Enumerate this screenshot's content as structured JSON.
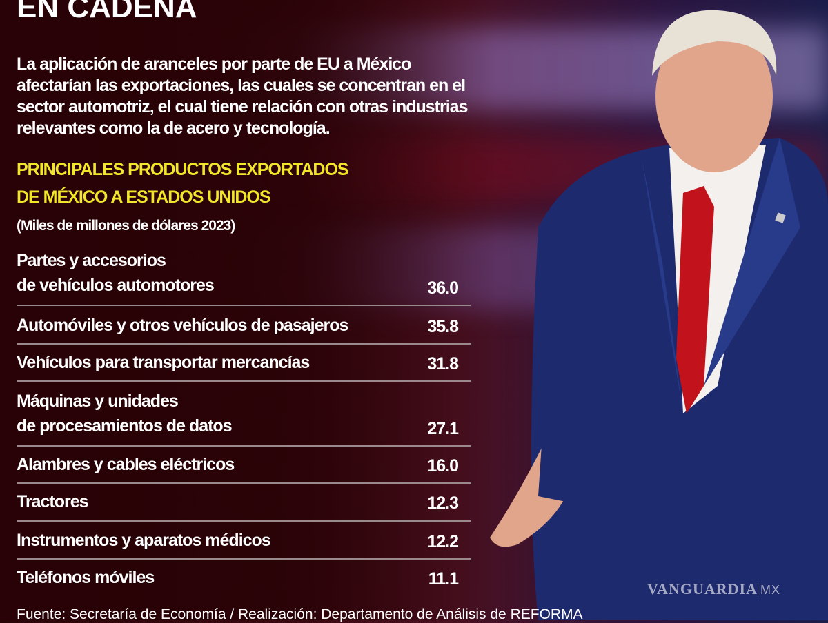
{
  "title": "EN CADENA",
  "intro": "La aplicación de aranceles por parte de EU a México afectarían las exportaciones, las cuales se concentran en el sector automotriz, el cual tiene relación con otras industrias relevantes como la de acero y tecnología.",
  "heading_line1": "PRINCIPALES PRODUCTOS EXPORTADOS",
  "heading_line2": "DE MÉXICO A ESTADOS UNIDOS",
  "unit": "(Miles de millones de dólares 2023)",
  "source": "Fuente: Secretaría de Economía / Realización: Departamento de Análisis de REFORMA",
  "watermark": "VANGUARDIA MX",
  "colors": {
    "heading": "#f1e62a",
    "background": "#3a0810",
    "text": "#ffffff"
  },
  "chart_data": {
    "type": "table",
    "title": "PRINCIPALES PRODUCTOS EXPORTADOS DE MÉXICO A ESTADOS UNIDOS",
    "unit": "(Miles de millones de dólares 2023)",
    "rows": [
      {
        "label": [
          "Partes y accesorios",
          "de vehículos automotores"
        ],
        "value": "36.0"
      },
      {
        "label": [
          "Automóviles y otros vehículos de pasajeros"
        ],
        "value": "35.8"
      },
      {
        "label": [
          "Vehículos para transportar mercancías"
        ],
        "value": "31.8"
      },
      {
        "label": [
          "Máquinas y unidades",
          "de procesamientos de datos"
        ],
        "value": "27.1"
      },
      {
        "label": [
          "Alambres y cables eléctricos"
        ],
        "value": "16.0"
      },
      {
        "label": [
          "Tractores"
        ],
        "value": "12.3"
      },
      {
        "label": [
          "Instrumentos y aparatos médicos"
        ],
        "value": "12.2"
      },
      {
        "label": [
          "Teléfonos móviles"
        ],
        "value": "11.1"
      }
    ]
  }
}
